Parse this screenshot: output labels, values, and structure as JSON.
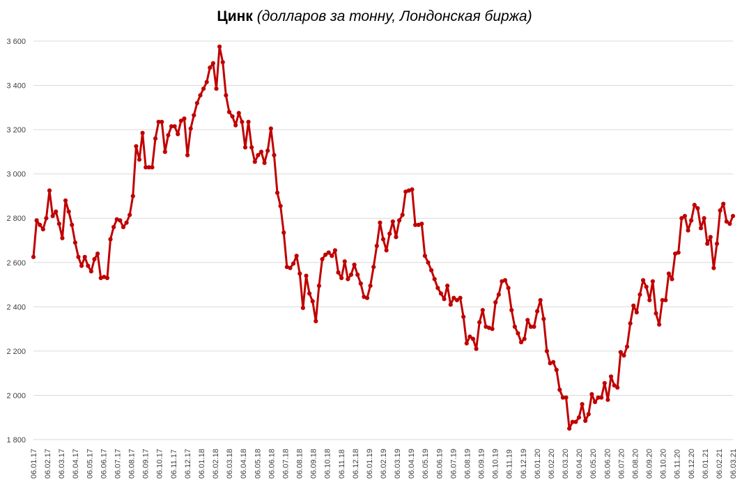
{
  "chart_data": {
    "type": "line",
    "title": "Цинк",
    "subtitle": "(долларов за тонну, Лондонская биржа)",
    "xlabel": "",
    "ylabel": "",
    "ylim": [
      1800,
      3600
    ],
    "yticks": [
      1800,
      2000,
      2200,
      2400,
      2600,
      2800,
      3000,
      3200,
      3400,
      3600
    ],
    "ytick_labels": [
      "1 800",
      "2 000",
      "2 200",
      "2 400",
      "2 600",
      "2 800",
      "3 000",
      "3 200",
      "3 400",
      "3 600"
    ],
    "grid": true,
    "legend": "none",
    "color": "#C00000",
    "x_ticks": [
      "06.01.17",
      "06.02.17",
      "06.03.17",
      "06.04.17",
      "06.05.17",
      "06.06.17",
      "06.07.17",
      "06.08.17",
      "06.09.17",
      "06.10.17",
      "06.11.17",
      "06.12.17",
      "06.01.18",
      "06.02.18",
      "06.03.18",
      "06.04.18",
      "06.05.18",
      "06.06.18",
      "06.07.18",
      "06.08.18",
      "06.09.18",
      "06.10.18",
      "06.11.18",
      "06.12.18",
      "06.01.19",
      "06.02.19",
      "06.03.19",
      "06.04.19",
      "06.05.19",
      "06.06.19",
      "06.07.19",
      "06.08.19",
      "06.09.19",
      "06.10.19",
      "06.11.19",
      "06.12.19",
      "06.01.20",
      "06.02.20",
      "06.03.20",
      "06.04.20",
      "06.05.20",
      "06.06.20",
      "06.07.20",
      "06.08.20",
      "06.09.20",
      "06.10.20",
      "06.11.20",
      "06.12.20",
      "06.01.21",
      "06.02.21",
      "06.03.21"
    ],
    "values": [
      2625,
      2790,
      2770,
      2750,
      2800,
      2925,
      2810,
      2830,
      2775,
      2710,
      2880,
      2830,
      2770,
      2690,
      2625,
      2585,
      2625,
      2585,
      2560,
      2615,
      2640,
      2530,
      2535,
      2530,
      2705,
      2760,
      2795,
      2790,
      2760,
      2780,
      2815,
      2900,
      3125,
      3065,
      3185,
      3030,
      3030,
      3030,
      3160,
      3235,
      3235,
      3100,
      3175,
      3215,
      3215,
      3180,
      3240,
      3250,
      3085,
      3205,
      3265,
      3320,
      3355,
      3385,
      3415,
      3480,
      3500,
      3385,
      3575,
      3505,
      3355,
      3280,
      3260,
      3220,
      3275,
      3235,
      3120,
      3235,
      3120,
      3055,
      3085,
      3100,
      3050,
      3105,
      3205,
      3085,
      2915,
      2855,
      2735,
      2580,
      2575,
      2595,
      2630,
      2550,
      2395,
      2540,
      2460,
      2425,
      2335,
      2495,
      2615,
      2635,
      2645,
      2630,
      2655,
      2555,
      2530,
      2605,
      2525,
      2545,
      2590,
      2545,
      2505,
      2445,
      2440,
      2495,
      2580,
      2675,
      2780,
      2705,
      2655,
      2730,
      2785,
      2715,
      2790,
      2815,
      2920,
      2925,
      2930,
      2770,
      2770,
      2775,
      2630,
      2600,
      2565,
      2525,
      2485,
      2460,
      2435,
      2495,
      2410,
      2440,
      2430,
      2440,
      2355,
      2235,
      2265,
      2255,
      2210,
      2330,
      2385,
      2310,
      2305,
      2300,
      2420,
      2455,
      2515,
      2520,
      2485,
      2385,
      2310,
      2280,
      2240,
      2255,
      2340,
      2310,
      2310,
      2380,
      2430,
      2345,
      2200,
      2145,
      2150,
      2115,
      2025,
      1990,
      1990,
      1850,
      1880,
      1880,
      1900,
      1960,
      1885,
      1915,
      2005,
      1970,
      1990,
      1990,
      2055,
      1980,
      2085,
      2045,
      2035,
      2195,
      2180,
      2220,
      2325,
      2405,
      2375,
      2455,
      2520,
      2490,
      2430,
      2515,
      2370,
      2320,
      2430,
      2430,
      2550,
      2525,
      2640,
      2645,
      2800,
      2810,
      2745,
      2790,
      2860,
      2845,
      2755,
      2800,
      2685,
      2715,
      2575,
      2685,
      2835,
      2865,
      2785,
      2775,
      2810
    ]
  }
}
